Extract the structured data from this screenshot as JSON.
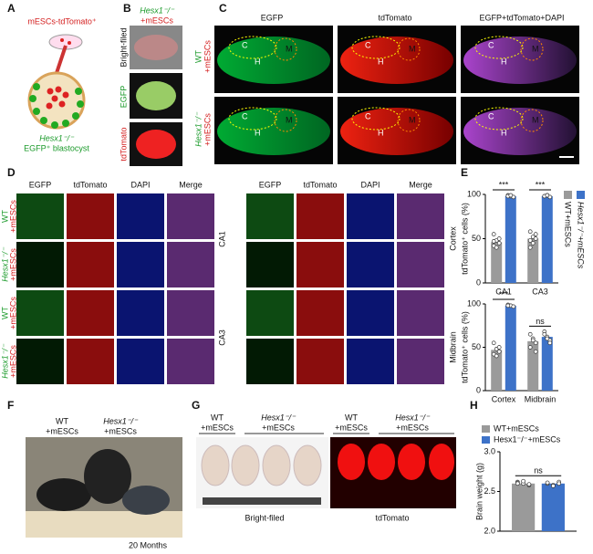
{
  "panel_labels": [
    "A",
    "B",
    "C",
    "D",
    "E",
    "F",
    "G",
    "H"
  ],
  "panel_a": {
    "top": "mESCs-tdTomato⁺",
    "genotype": "Hesx1⁻/⁻",
    "bottom": "EGFP⁺ blastocyst"
  },
  "panel_b": {
    "genotype": "Hesx1⁻/⁻",
    "cells": "+mESCs",
    "rows": [
      "Bright-filed",
      "EGFP",
      "tdTomato"
    ]
  },
  "panel_c": {
    "columns": [
      "EGFP",
      "tdTomato",
      "EGFP+tdTomato+DAPI"
    ],
    "rows": [
      [
        "WT",
        "+mESCs"
      ],
      [
        "Hesx1⁻/⁻",
        "+mESCs"
      ]
    ],
    "regions": [
      "C",
      "H",
      "M"
    ]
  },
  "panel_d": {
    "columns": [
      "EGFP",
      "tdTomato",
      "DAPI",
      "Merge"
    ],
    "rows": [
      [
        "WT",
        "+mESCs"
      ],
      [
        "Hesx1⁻/⁻",
        "+mESCs"
      ]
    ],
    "regions": [
      "CA1",
      "CA3"
    ]
  },
  "panel_f": {
    "groups": [
      [
        "WT",
        "+mESCs"
      ],
      [
        "Hesx1⁻/⁻",
        "+mESCs"
      ]
    ],
    "age": "20 Months"
  },
  "panel_g": {
    "groups": [
      [
        "WT",
        "+mESCs"
      ],
      [
        "Hesx1⁻/⁻",
        "+mESCs"
      ]
    ],
    "images": [
      "Bright-filed",
      "tdTomato"
    ]
  },
  "chart_data": [
    {
      "type": "bar",
      "ylabel": "tdTomato⁺ cells (%)",
      "region": "Cortex",
      "categories": [
        "CA1",
        "CA3"
      ],
      "series": [
        {
          "name": "WT+mESCs",
          "color": "#9a9a9a",
          "values": [
            46,
            50
          ],
          "points": [
            [
              55,
              48,
              45,
              42,
              40,
              50,
              47
            ],
            [
              58,
              52,
              50,
              48,
              45,
              55,
              40
            ]
          ]
        },
        {
          "name": "Hesx1⁻/⁻+mESCs",
          "color": "#3d72c8",
          "values": [
            98,
            98
          ],
          "points": [
            [
              99,
              98,
              97,
              98,
              99
            ],
            [
              98,
              99,
              97,
              98,
              99
            ]
          ]
        }
      ],
      "significance": [
        "***",
        "***"
      ],
      "ylim": [
        0,
        100
      ],
      "yticks": [
        0,
        50,
        100
      ],
      "legend": "right"
    },
    {
      "type": "bar",
      "ylabel": "tdTomato⁺ cells (%)",
      "region": "Midbrain",
      "categories": [
        "Cortex",
        "Midbrain"
      ],
      "series": [
        {
          "color": "#9a9a9a",
          "values": [
            47,
            57
          ],
          "points": [
            [
              55,
              48,
              45,
              42,
              40,
              50
            ],
            [
              65,
              60,
              55,
              50,
              58,
              45
            ]
          ]
        },
        {
          "color": "#3d72c8",
          "values": [
            98,
            62
          ],
          "points": [
            [
              99,
              98,
              97,
              98
            ],
            [
              68,
              62,
              58,
              65,
              60,
              55
            ]
          ]
        }
      ],
      "significance": [
        "***",
        "ns"
      ],
      "ylim": [
        0,
        100
      ],
      "yticks": [
        0,
        50,
        100
      ]
    },
    {
      "type": "bar",
      "ylabel": "Brain weight (g)",
      "categories": [
        null
      ],
      "series": [
        {
          "name": "WT+mESCs",
          "color": "#9a9a9a",
          "values": [
            2.6
          ],
          "points": [
            [
              2.62,
              2.6,
              2.58,
              2.61,
              2.63,
              2.59,
              2.6
            ]
          ]
        },
        {
          "name": "Hesx1⁻/⁻+mESCs",
          "color": "#3d72c8",
          "values": [
            2.6
          ],
          "points": [
            [
              2.6,
              2.58,
              2.62,
              2.61,
              2.57,
              2.6
            ]
          ]
        }
      ],
      "significance": [
        "ns"
      ],
      "ylim": [
        2,
        3
      ],
      "yticks": [
        {
          "value": 2,
          "label": "2.0"
        },
        {
          "value": 2.5,
          "label": "2.5"
        },
        {
          "value": 3,
          "label": "3.0"
        }
      ],
      "legend": "top"
    }
  ]
}
